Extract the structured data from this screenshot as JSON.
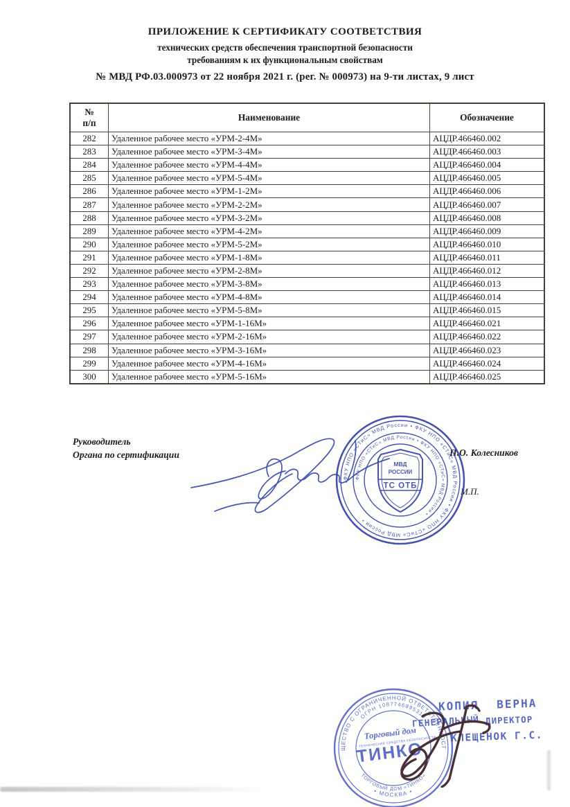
{
  "header": {
    "line1": "ПРИЛОЖЕНИЕ К СЕРТИФИКАТУ СООТВЕТСТВИЯ",
    "line2": "технических средств обеспечения транспортной безопасности",
    "line3": "требованиям к их функциональным свойствам",
    "number_line": "№ МВД РФ.03.000973 от 22 ноября 2021 г. (рег. № 000973) на 9-ти листах, 9 лист"
  },
  "table": {
    "headers": {
      "num_top": "№",
      "num_bottom": "п/п",
      "name": "Наименование",
      "code": "Обозначение"
    },
    "rows": [
      {
        "num": "282",
        "name": "Удаленное рабочее место «УРМ-2-4М»",
        "code": "АЦДР.466460.002"
      },
      {
        "num": "283",
        "name": "Удаленное рабочее место «УРМ-3-4М»",
        "code": "АЦДР.466460.003"
      },
      {
        "num": "284",
        "name": "Удаленное рабочее место «УРМ-4-4М»",
        "code": "АЦДР.466460.004"
      },
      {
        "num": "285",
        "name": "Удаленное рабочее место «УРМ-5-4М»",
        "code": "АЦДР.466460.005"
      },
      {
        "num": "286",
        "name": "Удаленное рабочее место «УРМ-1-2М»",
        "code": "АЦДР.466460.006"
      },
      {
        "num": "287",
        "name": "Удаленное рабочее место «УРМ-2-2М»",
        "code": "АЦДР.466460.007"
      },
      {
        "num": "288",
        "name": "Удаленное рабочее место «УРМ-3-2М»",
        "code": "АЦДР.466460.008"
      },
      {
        "num": "289",
        "name": "Удаленное рабочее место «УРМ-4-2М»",
        "code": "АЦДР.466460.009"
      },
      {
        "num": "290",
        "name": "Удаленное рабочее место «УРМ-5-2М»",
        "code": "АЦДР.466460.010"
      },
      {
        "num": "291",
        "name": "Удаленное рабочее место «УРМ-1-8М»",
        "code": "АЦДР.466460.011"
      },
      {
        "num": "292",
        "name": "Удаленное рабочее место «УРМ-2-8М»",
        "code": "АЦДР.466460.012"
      },
      {
        "num": "293",
        "name": "Удаленное рабочее место «УРМ-3-8М»",
        "code": "АЦДР.466460.013"
      },
      {
        "num": "294",
        "name": "Удаленное рабочее место «УРМ-4-8М»",
        "code": "АЦДР.466460.014"
      },
      {
        "num": "295",
        "name": "Удаленное рабочее место «УРМ-5-8М»",
        "code": "АЦДР.466460.015"
      },
      {
        "num": "296",
        "name": "Удаленное рабочее место «УРМ-1-16М»",
        "code": "АЦДР.466460.021"
      },
      {
        "num": "297",
        "name": "Удаленное рабочее место «УРМ-2-16М»",
        "code": "АЦДР.466460.022"
      },
      {
        "num": "298",
        "name": "Удаленное рабочее место «УРМ-3-16М»",
        "code": "АЦДР.466460.023"
      },
      {
        "num": "299",
        "name": "Удаленное рабочее место «УРМ-4-16М»",
        "code": "АЦДР.466460.024"
      },
      {
        "num": "300",
        "name": "Удаленное рабочее место «УРМ-5-16М»",
        "code": "АЦДР.466460.025"
      }
    ]
  },
  "signature_block": {
    "role_line1": "Руководитель",
    "role_line2": "Органа по сертификации",
    "signer_name": "П.О. Колесников",
    "seal_mark": "М.П."
  },
  "mvd_stamp": {
    "shield_top": "МВД",
    "shield_mid": "РОССИИ",
    "band": "ТС ОТБ",
    "ring_text_outer": "ФКУ НПО «СТиС» МВД России  •  ФКУ НПО «СТиС» МВД России  •  ФКУ НПО «СТиС» МВД России  •  ",
    "ring_text_inner": "ФКУ НПО «СТиС» МВД России  •  ФКУ НПО «СТиС» МВД России  •  ",
    "color": "#2c3aa6"
  },
  "tinko_stamp": {
    "ring_top": "ОБЩЕСТВО С ОГРАНИЧЕННОЙ ОТВЕТСТВЕННОСТЬЮ",
    "ring_ogrn": "ОГРН 1087746895310",
    "ring_bottom_outer": "• МОСКВА •",
    "ring_bottom_inner": "ТОРГОВЫЙ ДОМ «ТИНКО»",
    "center_script": "Торговый дом",
    "center_logo": "ТИНКО",
    "center_caption": "ТЕХНИЧЕСКИЕ СРЕДСТВА БЕЗОПАСНОСТИ",
    "color": "#3a50bd"
  },
  "copy_stamp": {
    "word1": "КОПИЯ",
    "word2": "ВЕРНА",
    "line2a": "ГЕНЕРАЛЬНЫЙ",
    "line2b": "ДИРЕКТОР",
    "line3": "КЛЕЩЕНОК Г.С.",
    "color": "#4a5cbd"
  }
}
